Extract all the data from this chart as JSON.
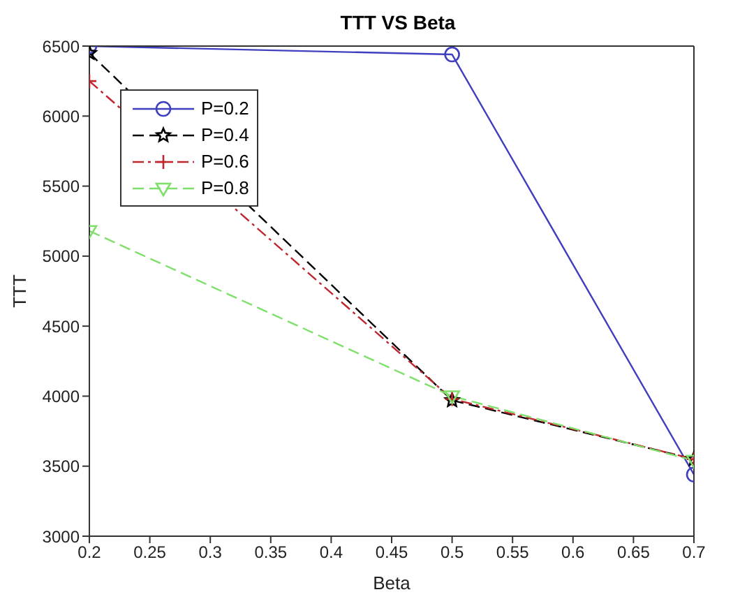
{
  "chart_data": {
    "type": "line",
    "title": "TTT VS Beta",
    "xlabel": "Beta",
    "ylabel": "TTT",
    "x": [
      0.2,
      0.5,
      0.7
    ],
    "series": [
      {
        "name": "P=0.2",
        "color": "#3f3fbf",
        "values": [
          6500,
          6440,
          3440
        ],
        "marker": "circle",
        "line_style": "solid"
      },
      {
        "name": "P=0.4",
        "color": "#000000",
        "values": [
          6450,
          3970,
          3550
        ],
        "marker": "star",
        "line_style": "dashed"
      },
      {
        "name": "P=0.6",
        "color": "#c0262e",
        "values": [
          6250,
          3980,
          3550
        ],
        "marker": "cross",
        "line_style": "dashdot"
      },
      {
        "name": "P=0.8",
        "color": "#7ee06a",
        "values": [
          5180,
          4000,
          3540
        ],
        "marker": "triangle",
        "line_style": "dashed"
      }
    ],
    "xlim": [
      0.2,
      0.7
    ],
    "xticks": [
      0.2,
      0.25,
      0.3,
      0.35,
      0.4,
      0.45,
      0.5,
      0.55,
      0.6,
      0.65,
      0.7
    ],
    "ylim": [
      3000,
      6500
    ],
    "yticks": [
      3000,
      3500,
      4000,
      4500,
      5000,
      5500,
      6000,
      6500
    ],
    "grid": false,
    "legend": "top left"
  }
}
